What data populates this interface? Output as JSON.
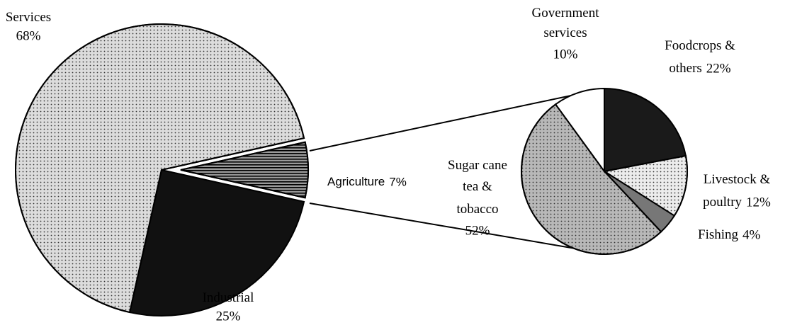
{
  "chart_data": [
    {
      "type": "pie",
      "categories": [
        "Services",
        "Industrial",
        "Agriculture"
      ],
      "values": [
        68,
        25,
        7
      ],
      "value_labels": [
        "68%",
        "25%",
        "7%"
      ],
      "colors": [
        "#dcdcdc",
        "#111111",
        "#9a9a9a"
      ]
    },
    {
      "type": "pie",
      "categories": [
        "Foodcrops & others",
        "Livestock & poultry",
        "Fishing",
        "Sugar cane tea & tobacco",
        "Government services"
      ],
      "values": [
        22,
        12,
        4,
        52,
        10
      ],
      "value_labels": [
        "22%",
        "12%",
        "4%",
        "52%",
        "10%"
      ],
      "colors": [
        "#1a1a1a",
        "#ececec",
        "#777777",
        "#b8b8b8",
        "#ffffff"
      ]
    }
  ]
}
